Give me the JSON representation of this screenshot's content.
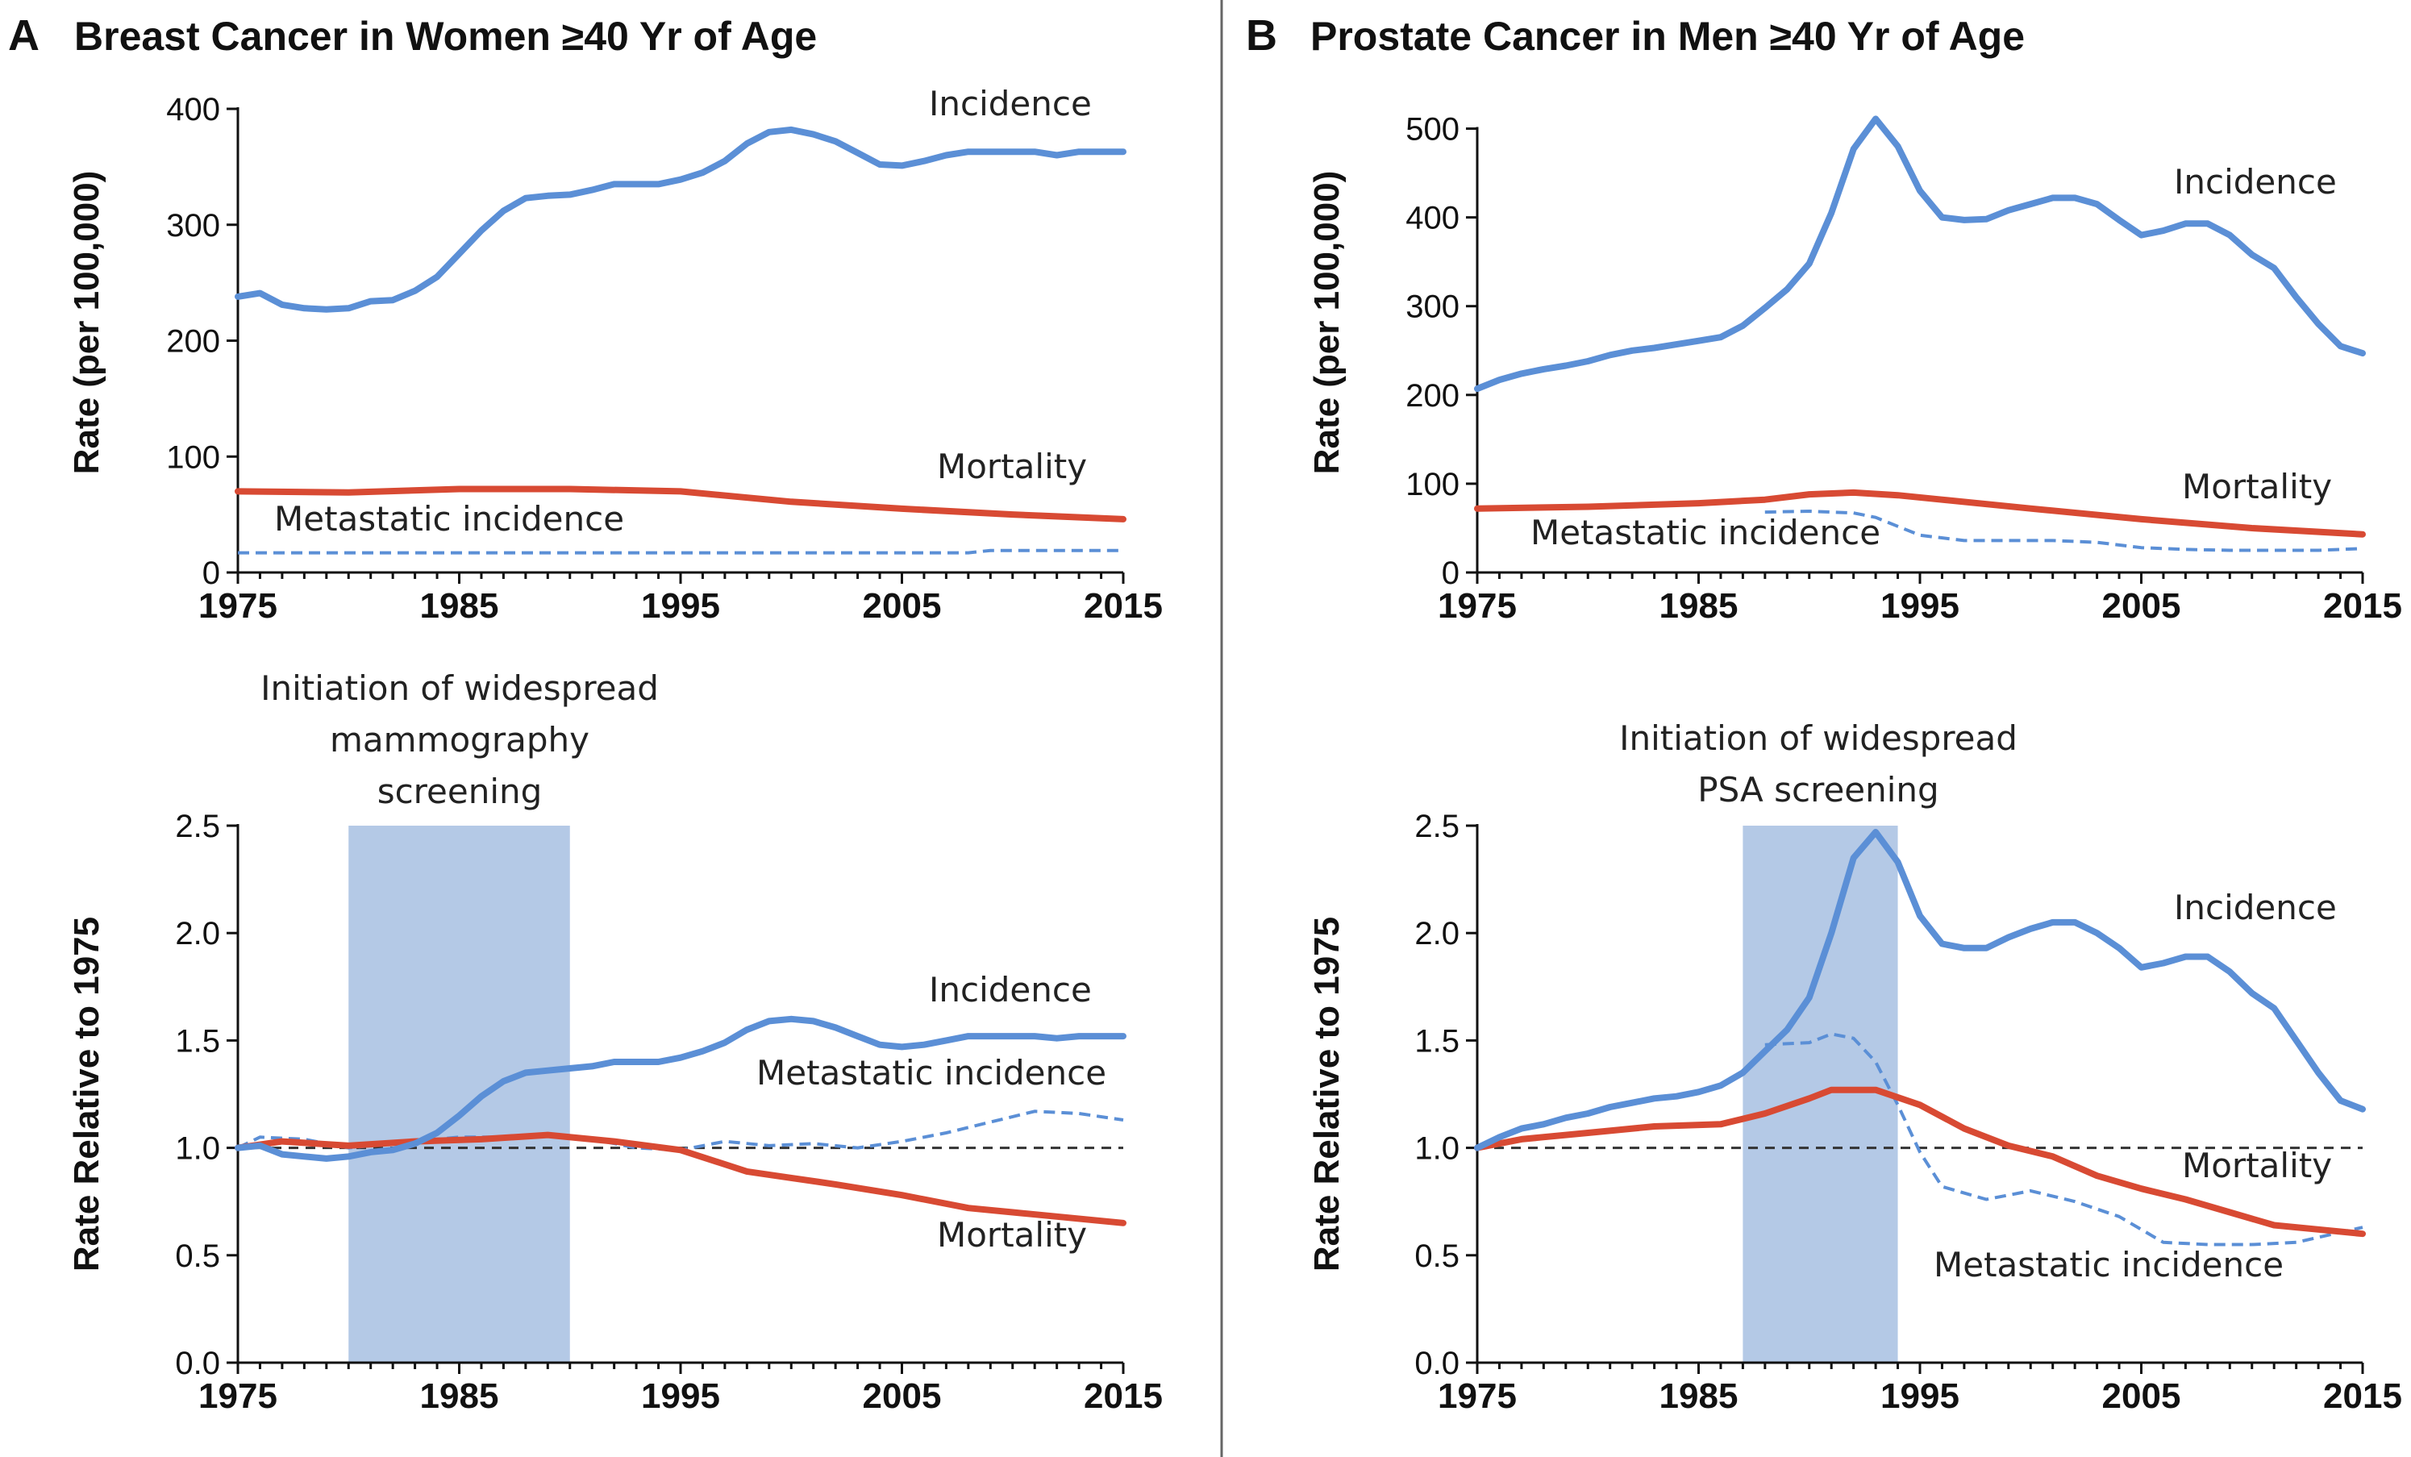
{
  "panels": {
    "A": {
      "letter": "A",
      "title": "Breast Cancer in Women ≥40 Yr of Age",
      "annotation": [
        "Initiation of widespread",
        "mammography",
        "screening"
      ]
    },
    "B": {
      "letter": "B",
      "title": "Prostate Cancer in Men ≥40 Yr of Age",
      "annotation": [
        "Initiation of widespread",
        "PSA screening"
      ]
    }
  },
  "colors": {
    "incidence": "#5b8fd6",
    "mortality": "#d84a33",
    "metastatic": "#5b8fd6",
    "screening_band": "#b4c9e6",
    "reference_line": "#333333"
  },
  "chart_data": [
    {
      "id": "A-top",
      "type": "line",
      "ylabel": "Rate (per 100,000)",
      "xlabel": "",
      "xlim": [
        1975,
        2015
      ],
      "ylim": [
        0,
        400
      ],
      "xticks": [
        1975,
        1985,
        1995,
        2005,
        2015
      ],
      "yticks": [
        0,
        100,
        200,
        300,
        400
      ],
      "series": [
        {
          "name": "Incidence",
          "style": "solid",
          "color_key": "incidence",
          "x": [
            1975,
            1976,
            1977,
            1978,
            1979,
            1980,
            1981,
            1982,
            1983,
            1984,
            1985,
            1986,
            1987,
            1988,
            1989,
            1990,
            1991,
            1992,
            1993,
            1994,
            1995,
            1996,
            1997,
            1998,
            1999,
            2000,
            2001,
            2002,
            2003,
            2004,
            2005,
            2006,
            2007,
            2008,
            2009,
            2010,
            2011,
            2012,
            2013,
            2014,
            2015
          ],
          "y": [
            238,
            241,
            231,
            228,
            227,
            228,
            234,
            235,
            243,
            255,
            275,
            295,
            312,
            323,
            325,
            326,
            330,
            335,
            335,
            335,
            339,
            345,
            355,
            370,
            380,
            382,
            378,
            372,
            362,
            352,
            351,
            355,
            360,
            363,
            363,
            363,
            363,
            360,
            363,
            363,
            363
          ]
        },
        {
          "name": "Mortality",
          "style": "solid",
          "color_key": "mortality",
          "x": [
            1975,
            1980,
            1985,
            1990,
            1995,
            2000,
            2005,
            2010,
            2015
          ],
          "y": [
            70,
            69,
            72,
            72,
            70,
            61,
            55,
            50,
            46
          ]
        },
        {
          "name": "Metastatic incidence",
          "style": "dashed",
          "color_key": "metastatic",
          "x": [
            1975,
            1985,
            1995,
            2005,
            2008,
            2009,
            2015
          ],
          "y": [
            17,
            17,
            17,
            17,
            17,
            19,
            19
          ]
        }
      ],
      "labels": {
        "incidence": "Incidence",
        "mortality": "Mortality",
        "metastatic": "Metastatic incidence"
      }
    },
    {
      "id": "A-bottom",
      "type": "line",
      "ylabel": "Rate Relative to 1975",
      "xlabel": "",
      "xlim": [
        1975,
        2015
      ],
      "ylim": [
        0,
        2.5
      ],
      "xticks": [
        1975,
        1985,
        1995,
        2005,
        2015
      ],
      "yticks": [
        0.0,
        0.5,
        1.0,
        1.5,
        2.0,
        2.5
      ],
      "yticklabels": [
        "0.0",
        "0.5",
        "1.0",
        "1.5",
        "2.0",
        "2.5"
      ],
      "reference_y": 1.0,
      "band": [
        1980,
        1990
      ],
      "series": [
        {
          "name": "Incidence",
          "style": "solid",
          "color_key": "incidence",
          "x": [
            1975,
            1976,
            1977,
            1978,
            1979,
            1980,
            1981,
            1982,
            1983,
            1984,
            1985,
            1986,
            1987,
            1988,
            1989,
            1990,
            1991,
            1992,
            1993,
            1994,
            1995,
            1996,
            1997,
            1998,
            1999,
            2000,
            2001,
            2002,
            2003,
            2004,
            2005,
            2006,
            2007,
            2008,
            2009,
            2010,
            2011,
            2012,
            2013,
            2014,
            2015
          ],
          "y": [
            1.0,
            1.01,
            0.97,
            0.96,
            0.95,
            0.96,
            0.98,
            0.99,
            1.02,
            1.07,
            1.15,
            1.24,
            1.31,
            1.35,
            1.36,
            1.37,
            1.38,
            1.4,
            1.4,
            1.4,
            1.42,
            1.45,
            1.49,
            1.55,
            1.59,
            1.6,
            1.59,
            1.56,
            1.52,
            1.48,
            1.47,
            1.48,
            1.5,
            1.52,
            1.52,
            1.52,
            1.52,
            1.51,
            1.52,
            1.52,
            1.52
          ]
        },
        {
          "name": "Mortality",
          "style": "solid",
          "color_key": "mortality",
          "x": [
            1975,
            1977,
            1980,
            1983,
            1986,
            1989,
            1992,
            1995,
            1998,
            2000,
            2002,
            2005,
            2008,
            2010,
            2012,
            2015
          ],
          "y": [
            1.0,
            1.03,
            1.01,
            1.03,
            1.04,
            1.06,
            1.03,
            0.99,
            0.89,
            0.86,
            0.83,
            0.78,
            0.72,
            0.7,
            0.68,
            0.65
          ]
        },
        {
          "name": "Metastatic incidence",
          "style": "dashed",
          "color_key": "metastatic",
          "x": [
            1975,
            1976,
            1978,
            1980,
            1983,
            1985,
            1987,
            1989,
            1991,
            1993,
            1995,
            1997,
            1999,
            2001,
            2003,
            2005,
            2007,
            2009,
            2011,
            2013,
            2015
          ],
          "y": [
            1.0,
            1.05,
            1.04,
            1.0,
            1.03,
            1.05,
            1.05,
            1.06,
            1.04,
            1.0,
            0.99,
            1.03,
            1.01,
            1.02,
            1.0,
            1.03,
            1.07,
            1.12,
            1.17,
            1.16,
            1.13
          ]
        }
      ],
      "labels": {
        "incidence": "Incidence",
        "mortality": "Mortality",
        "metastatic": "Metastatic incidence"
      }
    },
    {
      "id": "B-top",
      "type": "line",
      "ylabel": "Rate (per 100,000)",
      "xlabel": "",
      "xlim": [
        1975,
        2015
      ],
      "ylim": [
        0,
        525
      ],
      "xticks": [
        1975,
        1985,
        1995,
        2005,
        2015
      ],
      "yticks": [
        0,
        100,
        200,
        300,
        400,
        500
      ],
      "series": [
        {
          "name": "Incidence",
          "style": "solid",
          "color_key": "incidence",
          "x": [
            1975,
            1976,
            1977,
            1978,
            1979,
            1980,
            1981,
            1982,
            1983,
            1984,
            1985,
            1986,
            1987,
            1988,
            1989,
            1990,
            1991,
            1992,
            1993,
            1994,
            1995,
            1996,
            1997,
            1998,
            1999,
            2000,
            2001,
            2002,
            2003,
            2004,
            2005,
            2006,
            2007,
            2008,
            2009,
            2010,
            2011,
            2012,
            2013,
            2014,
            2015
          ],
          "y": [
            207,
            217,
            224,
            229,
            233,
            238,
            245,
            250,
            253,
            257,
            261,
            265,
            278,
            298,
            319,
            348,
            405,
            477,
            511,
            480,
            430,
            400,
            397,
            398,
            408,
            415,
            422,
            422,
            415,
            397,
            380,
            385,
            393,
            393,
            380,
            358,
            343,
            310,
            280,
            255,
            247
          ]
        },
        {
          "name": "Mortality",
          "style": "solid",
          "color_key": "mortality",
          "x": [
            1975,
            1980,
            1985,
            1988,
            1990,
            1992,
            1994,
            1996,
            2000,
            2005,
            2010,
            2015
          ],
          "y": [
            72,
            74,
            78,
            82,
            88,
            90,
            87,
            82,
            72,
            60,
            50,
            43
          ]
        },
        {
          "name": "Metastatic incidence",
          "style": "dashed",
          "color_key": "metastatic",
          "x": [
            1988,
            1990,
            1992,
            1993,
            1994,
            1995,
            1997,
            1999,
            2001,
            2003,
            2005,
            2007,
            2009,
            2011,
            2013,
            2015
          ],
          "y": [
            68,
            69,
            67,
            62,
            52,
            42,
            36,
            36,
            36,
            34,
            28,
            26,
            25,
            25,
            25,
            27
          ]
        }
      ],
      "labels": {
        "incidence": "Incidence",
        "mortality": "Mortality",
        "metastatic": "Metastatic incidence"
      }
    },
    {
      "id": "B-bottom",
      "type": "line",
      "ylabel": "Rate Relative to 1975",
      "xlabel": "",
      "xlim": [
        1975,
        2015
      ],
      "ylim": [
        0,
        2.5
      ],
      "xticks": [
        1975,
        1985,
        1995,
        2005,
        2015
      ],
      "yticks": [
        0.0,
        0.5,
        1.0,
        1.5,
        2.0,
        2.5
      ],
      "yticklabels": [
        "0.0",
        "0.5",
        "1.0",
        "1.5",
        "2.0",
        "2.5"
      ],
      "reference_y": 1.0,
      "band": [
        1987,
        1994
      ],
      "series": [
        {
          "name": "Incidence",
          "style": "solid",
          "color_key": "incidence",
          "x": [
            1975,
            1976,
            1977,
            1978,
            1979,
            1980,
            1981,
            1982,
            1983,
            1984,
            1985,
            1986,
            1987,
            1988,
            1989,
            1990,
            1991,
            1992,
            1993,
            1994,
            1995,
            1996,
            1997,
            1998,
            1999,
            2000,
            2001,
            2002,
            2003,
            2004,
            2005,
            2006,
            2007,
            2008,
            2009,
            2010,
            2011,
            2012,
            2013,
            2014,
            2015
          ],
          "y": [
            1.0,
            1.05,
            1.09,
            1.11,
            1.14,
            1.16,
            1.19,
            1.21,
            1.23,
            1.24,
            1.26,
            1.29,
            1.35,
            1.45,
            1.55,
            1.7,
            2.0,
            2.35,
            2.47,
            2.33,
            2.08,
            1.95,
            1.93,
            1.93,
            1.98,
            2.02,
            2.05,
            2.05,
            2.0,
            1.93,
            1.84,
            1.86,
            1.89,
            1.89,
            1.82,
            1.72,
            1.65,
            1.5,
            1.35,
            1.22,
            1.18
          ]
        },
        {
          "name": "Mortality",
          "style": "solid",
          "color_key": "mortality",
          "x": [
            1975,
            1977,
            1980,
            1983,
            1986,
            1988,
            1990,
            1991,
            1993,
            1995,
            1997,
            1999,
            2001,
            2003,
            2005,
            2007,
            2009,
            2011,
            2013,
            2015
          ],
          "y": [
            1.0,
            1.04,
            1.07,
            1.1,
            1.11,
            1.16,
            1.23,
            1.27,
            1.27,
            1.2,
            1.09,
            1.01,
            0.96,
            0.87,
            0.81,
            0.76,
            0.7,
            0.64,
            0.62,
            0.6
          ]
        },
        {
          "name": "Metastatic incidence",
          "style": "dashed",
          "color_key": "metastatic",
          "x": [
            1988,
            1990,
            1991,
            1992,
            1993,
            1994,
            1995,
            1996,
            1998,
            2000,
            2002,
            2004,
            2006,
            2008,
            2010,
            2012,
            2015
          ],
          "y": [
            1.48,
            1.49,
            1.53,
            1.51,
            1.4,
            1.2,
            0.98,
            0.82,
            0.76,
            0.8,
            0.75,
            0.68,
            0.56,
            0.55,
            0.55,
            0.56,
            0.63
          ]
        }
      ],
      "labels": {
        "incidence": "Incidence",
        "mortality": "Mortality",
        "metastatic": "Metastatic incidence"
      }
    }
  ]
}
